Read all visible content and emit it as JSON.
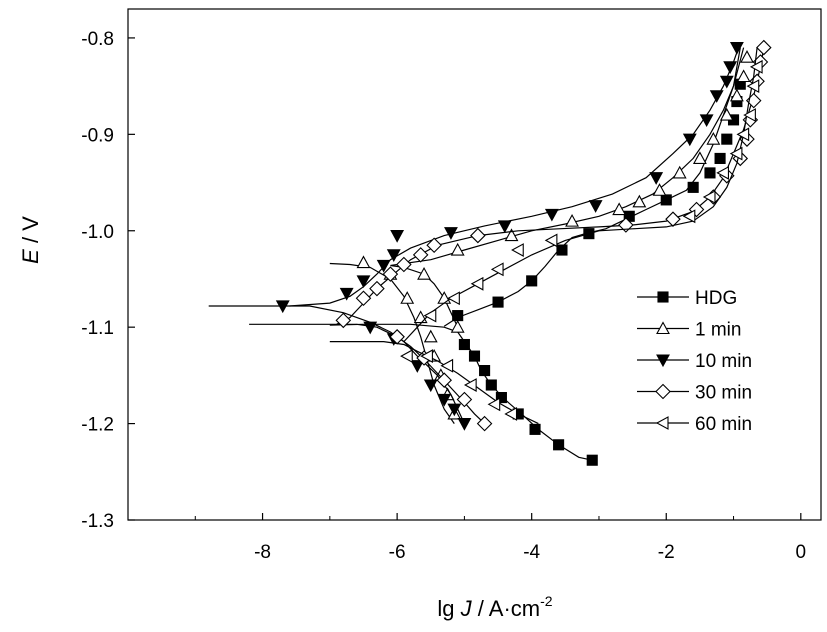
{
  "chart_data": {
    "type": "line",
    "xlabel": {
      "prefix": "lg ",
      "var": "J",
      "unit": " / A·cm",
      "exp": "-2"
    },
    "ylabel": {
      "var": "E",
      "unit": " / V"
    },
    "xlim": [
      -10,
      0.3
    ],
    "ylim": [
      -1.3,
      -0.77
    ],
    "x_ticks": [
      -8,
      -6,
      -4,
      -2,
      0
    ],
    "y_ticks": [
      -1.3,
      -1.2,
      -1.1,
      -1.0,
      -0.9,
      -0.8
    ],
    "x_tick_labels": [
      "-8",
      "-6",
      "-4",
      "-2",
      "0"
    ],
    "y_tick_labels": [
      "-1.3",
      "-1.2",
      "-1.1",
      "-1.0",
      "-0.9",
      "-0.8"
    ],
    "legend_position": "right",
    "grid": false,
    "series": [
      {
        "name": "HDG",
        "marker": "square-filled",
        "cathodic": [
          [
            -3.1,
            -1.238
          ],
          [
            -3.3,
            -1.235
          ],
          [
            -3.6,
            -1.222
          ],
          [
            -3.9,
            -1.206
          ],
          [
            -4.15,
            -1.19
          ],
          [
            -4.4,
            -1.175
          ],
          [
            -4.6,
            -1.16
          ],
          [
            -4.75,
            -1.145
          ],
          [
            -4.85,
            -1.13
          ],
          [
            -4.95,
            -1.12
          ],
          [
            -5.1,
            -1.105
          ],
          [
            -5.3,
            -1.1
          ],
          [
            -5.8,
            -1.097
          ],
          [
            -6.5,
            -1.097
          ],
          [
            -7.0,
            -1.098
          ]
        ],
        "anodic": [
          [
            -5.3,
            -1.099
          ],
          [
            -5.1,
            -1.09
          ],
          [
            -4.8,
            -1.082
          ],
          [
            -4.5,
            -1.074
          ],
          [
            -4.2,
            -1.063
          ],
          [
            -4.0,
            -1.052
          ],
          [
            -3.8,
            -1.037
          ],
          [
            -3.6,
            -1.02
          ],
          [
            -3.4,
            -1.007
          ],
          [
            -3.2,
            -1.003
          ],
          [
            -2.9,
            -0.998
          ],
          [
            -2.6,
            -0.988
          ],
          [
            -2.3,
            -0.978
          ],
          [
            -2.0,
            -0.968
          ],
          [
            -1.7,
            -0.958
          ],
          [
            -1.5,
            -0.94
          ],
          [
            -1.3,
            -0.91
          ],
          [
            -1.15,
            -0.88
          ],
          [
            -1.0,
            -0.85
          ],
          [
            -0.9,
            -0.81
          ]
        ],
        "marker_points": [
          [
            -3.1,
            -1.238
          ],
          [
            -3.6,
            -1.222
          ],
          [
            -3.95,
            -1.206
          ],
          [
            -4.2,
            -1.19
          ],
          [
            -4.45,
            -1.173
          ],
          [
            -4.6,
            -1.16
          ],
          [
            -4.7,
            -1.145
          ],
          [
            -4.85,
            -1.13
          ],
          [
            -5.0,
            -1.118
          ],
          [
            -5.1,
            -1.088
          ],
          [
            -4.5,
            -1.074
          ],
          [
            -4.0,
            -1.052
          ],
          [
            -3.55,
            -1.02
          ],
          [
            -3.15,
            -1.003
          ],
          [
            -2.55,
            -0.985
          ],
          [
            -2.0,
            -0.968
          ],
          [
            -1.6,
            -0.955
          ],
          [
            -1.35,
            -0.94
          ],
          [
            -1.2,
            -0.925
          ],
          [
            -1.1,
            -0.905
          ],
          [
            -1.0,
            -0.885
          ],
          [
            -0.95,
            -0.866
          ],
          [
            -0.9,
            -0.848
          ]
        ]
      },
      {
        "name": "1 min",
        "marker": "triangle-up-open",
        "cathodic": [
          [
            -5.15,
            -1.2
          ],
          [
            -5.3,
            -1.185
          ],
          [
            -5.45,
            -1.16
          ],
          [
            -5.55,
            -1.135
          ],
          [
            -5.65,
            -1.11
          ],
          [
            -5.75,
            -1.09
          ],
          [
            -5.9,
            -1.068
          ],
          [
            -6.1,
            -1.05
          ],
          [
            -6.4,
            -1.038
          ],
          [
            -6.7,
            -1.035
          ],
          [
            -7.0,
            -1.034
          ]
        ],
        "anodic": [
          [
            -5.1,
            -1.1
          ],
          [
            -5.2,
            -1.085
          ],
          [
            -5.3,
            -1.07
          ],
          [
            -5.45,
            -1.055
          ],
          [
            -5.6,
            -1.045
          ],
          [
            -5.9,
            -1.038
          ],
          [
            -6.1,
            -1.036
          ],
          [
            -5.5,
            -1.03
          ],
          [
            -5.0,
            -1.02
          ],
          [
            -4.5,
            -1.01
          ],
          [
            -4.0,
            -1.0
          ],
          [
            -3.5,
            -0.993
          ],
          [
            -3.0,
            -0.985
          ],
          [
            -2.6,
            -0.975
          ],
          [
            -2.2,
            -0.962
          ],
          [
            -1.9,
            -0.945
          ],
          [
            -1.6,
            -0.925
          ],
          [
            -1.35,
            -0.9
          ],
          [
            -1.15,
            -0.875
          ],
          [
            -1.0,
            -0.85
          ],
          [
            -0.85,
            -0.81
          ]
        ],
        "marker_points": [
          [
            -6.5,
            -1.033
          ],
          [
            -6.1,
            -1.045
          ],
          [
            -5.85,
            -1.07
          ],
          [
            -5.65,
            -1.09
          ],
          [
            -5.5,
            -1.11
          ],
          [
            -5.45,
            -1.13
          ],
          [
            -5.35,
            -1.15
          ],
          [
            -5.25,
            -1.17
          ],
          [
            -5.15,
            -1.19
          ],
          [
            -5.1,
            -1.1
          ],
          [
            -5.3,
            -1.07
          ],
          [
            -5.6,
            -1.045
          ],
          [
            -5.1,
            -1.02
          ],
          [
            -4.3,
            -1.005
          ],
          [
            -3.4,
            -0.99
          ],
          [
            -2.7,
            -0.978
          ],
          [
            -2.4,
            -0.97
          ],
          [
            -2.1,
            -0.958
          ],
          [
            -1.8,
            -0.94
          ],
          [
            -1.5,
            -0.925
          ],
          [
            -1.3,
            -0.905
          ],
          [
            -1.1,
            -0.88
          ],
          [
            -0.95,
            -0.86
          ],
          [
            -0.85,
            -0.84
          ],
          [
            -0.8,
            -0.82
          ]
        ]
      },
      {
        "name": "10 min",
        "marker": "triangle-down-filled",
        "cathodic": [
          [
            -5.0,
            -1.2
          ],
          [
            -5.1,
            -1.185
          ],
          [
            -5.2,
            -1.17
          ],
          [
            -5.3,
            -1.16
          ],
          [
            -5.4,
            -1.15
          ],
          [
            -5.55,
            -1.14
          ],
          [
            -5.7,
            -1.13
          ],
          [
            -5.9,
            -1.115
          ],
          [
            -6.1,
            -1.105
          ],
          [
            -6.4,
            -1.095
          ],
          [
            -6.8,
            -1.085
          ],
          [
            -7.3,
            -1.078
          ],
          [
            -8.0,
            -1.078
          ],
          [
            -8.8,
            -1.078
          ]
        ],
        "anodic": [
          [
            -7.6,
            -1.078
          ],
          [
            -7.0,
            -1.075
          ],
          [
            -6.7,
            -1.068
          ],
          [
            -6.5,
            -1.058
          ],
          [
            -6.3,
            -1.045
          ],
          [
            -6.1,
            -1.03
          ],
          [
            -5.8,
            -1.018
          ],
          [
            -5.3,
            -1.005
          ],
          [
            -4.7,
            -0.995
          ],
          [
            -4.0,
            -0.985
          ],
          [
            -3.4,
            -0.975
          ],
          [
            -2.8,
            -0.962
          ],
          [
            -2.3,
            -0.945
          ],
          [
            -1.9,
            -0.92
          ],
          [
            -1.6,
            -0.9
          ],
          [
            -1.35,
            -0.875
          ],
          [
            -1.15,
            -0.85
          ],
          [
            -1.0,
            -0.825
          ],
          [
            -0.9,
            -0.805
          ]
        ],
        "marker_points": [
          [
            -7.7,
            -1.078
          ],
          [
            -6.75,
            -1.065
          ],
          [
            -6.5,
            -1.052
          ],
          [
            -6.2,
            -1.036
          ],
          [
            -6.05,
            -1.025
          ],
          [
            -6.0,
            -1.005
          ],
          [
            -5.2,
            -1.002
          ],
          [
            -4.4,
            -0.995
          ],
          [
            -3.7,
            -0.983
          ],
          [
            -3.05,
            -0.974
          ],
          [
            -2.15,
            -0.945
          ],
          [
            -1.65,
            -0.905
          ],
          [
            -1.4,
            -0.885
          ],
          [
            -1.25,
            -0.86
          ],
          [
            -1.1,
            -0.845
          ],
          [
            -1.05,
            -0.83
          ],
          [
            -0.95,
            -0.81
          ],
          [
            -6.4,
            -1.1
          ],
          [
            -6.05,
            -1.112
          ],
          [
            -5.7,
            -1.14
          ],
          [
            -5.5,
            -1.16
          ],
          [
            -5.3,
            -1.175
          ],
          [
            -5.15,
            -1.185
          ],
          [
            -5.0,
            -1.2
          ]
        ]
      },
      {
        "name": "30 min",
        "marker": "diamond-open",
        "cathodic": [
          [
            -4.7,
            -1.2
          ],
          [
            -4.85,
            -1.19
          ],
          [
            -5.0,
            -1.178
          ],
          [
            -5.2,
            -1.163
          ],
          [
            -5.4,
            -1.148
          ],
          [
            -5.6,
            -1.133
          ],
          [
            -5.8,
            -1.12
          ],
          [
            -6.0,
            -1.11
          ],
          [
            -6.3,
            -1.1
          ],
          [
            -6.6,
            -1.097
          ],
          [
            -7.0,
            -1.097
          ],
          [
            -7.5,
            -1.097
          ],
          [
            -8.2,
            -1.097
          ]
        ],
        "anodic": [
          [
            -6.9,
            -1.097
          ],
          [
            -6.7,
            -1.09
          ],
          [
            -6.5,
            -1.075
          ],
          [
            -6.3,
            -1.06
          ],
          [
            -6.05,
            -1.045
          ],
          [
            -5.8,
            -1.03
          ],
          [
            -5.4,
            -1.015
          ],
          [
            -4.8,
            -1.005
          ],
          [
            -4.2,
            -1.0
          ],
          [
            -3.6,
            -0.998
          ],
          [
            -3.0,
            -0.996
          ],
          [
            -2.5,
            -0.994
          ],
          [
            -2.0,
            -0.99
          ],
          [
            -1.6,
            -0.98
          ],
          [
            -1.35,
            -0.965
          ],
          [
            -1.15,
            -0.945
          ],
          [
            -1.0,
            -0.92
          ],
          [
            -0.85,
            -0.895
          ],
          [
            -0.7,
            -0.86
          ],
          [
            -0.6,
            -0.83
          ],
          [
            -0.55,
            -0.81
          ]
        ],
        "marker_points": [
          [
            -6.8,
            -1.093
          ],
          [
            -6.5,
            -1.07
          ],
          [
            -6.3,
            -1.06
          ],
          [
            -6.1,
            -1.045
          ],
          [
            -5.9,
            -1.035
          ],
          [
            -5.65,
            -1.025
          ],
          [
            -5.45,
            -1.015
          ],
          [
            -4.8,
            -1.005
          ],
          [
            -2.6,
            -0.994
          ],
          [
            -1.9,
            -0.988
          ],
          [
            -1.55,
            -0.978
          ],
          [
            -1.3,
            -0.965
          ],
          [
            -1.1,
            -0.943
          ],
          [
            -0.9,
            -0.925
          ],
          [
            -0.8,
            -0.905
          ],
          [
            -0.75,
            -0.885
          ],
          [
            -0.7,
            -0.865
          ],
          [
            -0.65,
            -0.845
          ],
          [
            -0.6,
            -0.825
          ],
          [
            -0.55,
            -0.81
          ],
          [
            -6.0,
            -1.11
          ],
          [
            -5.6,
            -1.132
          ],
          [
            -5.3,
            -1.155
          ],
          [
            -5.0,
            -1.175
          ],
          [
            -4.7,
            -1.2
          ]
        ]
      },
      {
        "name": "60 min",
        "marker": "triangle-left-open",
        "cathodic": [
          [
            -3.9,
            -1.2
          ],
          [
            -4.2,
            -1.19
          ],
          [
            -4.5,
            -1.178
          ],
          [
            -4.8,
            -1.163
          ],
          [
            -5.1,
            -1.148
          ],
          [
            -5.4,
            -1.135
          ],
          [
            -5.7,
            -1.125
          ],
          [
            -5.9,
            -1.118
          ],
          [
            -6.2,
            -1.115
          ],
          [
            -6.6,
            -1.115
          ],
          [
            -7.0,
            -1.115
          ]
        ],
        "anodic": [
          [
            -5.9,
            -1.115
          ],
          [
            -5.7,
            -1.1
          ],
          [
            -5.5,
            -1.085
          ],
          [
            -5.2,
            -1.07
          ],
          [
            -4.8,
            -1.055
          ],
          [
            -4.4,
            -1.04
          ],
          [
            -4.0,
            -1.025
          ],
          [
            -3.5,
            -1.01
          ],
          [
            -3.0,
            -1.0
          ],
          [
            -2.5,
            -0.998
          ],
          [
            -2.0,
            -0.996
          ],
          [
            -1.6,
            -0.99
          ],
          [
            -1.3,
            -0.975
          ],
          [
            -1.1,
            -0.955
          ],
          [
            -0.95,
            -0.93
          ],
          [
            -0.85,
            -0.9
          ],
          [
            -0.78,
            -0.87
          ],
          [
            -0.7,
            -0.84
          ],
          [
            -0.65,
            -0.81
          ]
        ],
        "marker_points": [
          [
            -5.85,
            -1.13
          ],
          [
            -5.5,
            -1.088
          ],
          [
            -5.15,
            -1.07
          ],
          [
            -4.8,
            -1.055
          ],
          [
            -4.5,
            -1.04
          ],
          [
            -4.2,
            -1.02
          ],
          [
            -3.7,
            -1.01
          ],
          [
            -1.65,
            -0.985
          ],
          [
            -1.35,
            -0.965
          ],
          [
            -1.15,
            -0.94
          ],
          [
            -0.95,
            -0.92
          ],
          [
            -0.85,
            -0.9
          ],
          [
            -0.75,
            -0.88
          ],
          [
            -0.7,
            -0.85
          ],
          [
            -0.65,
            -0.83
          ],
          [
            -5.55,
            -1.13
          ],
          [
            -5.25,
            -1.14
          ],
          [
            -4.9,
            -1.16
          ],
          [
            -4.55,
            -1.18
          ],
          [
            -4.3,
            -1.19
          ]
        ]
      }
    ]
  }
}
